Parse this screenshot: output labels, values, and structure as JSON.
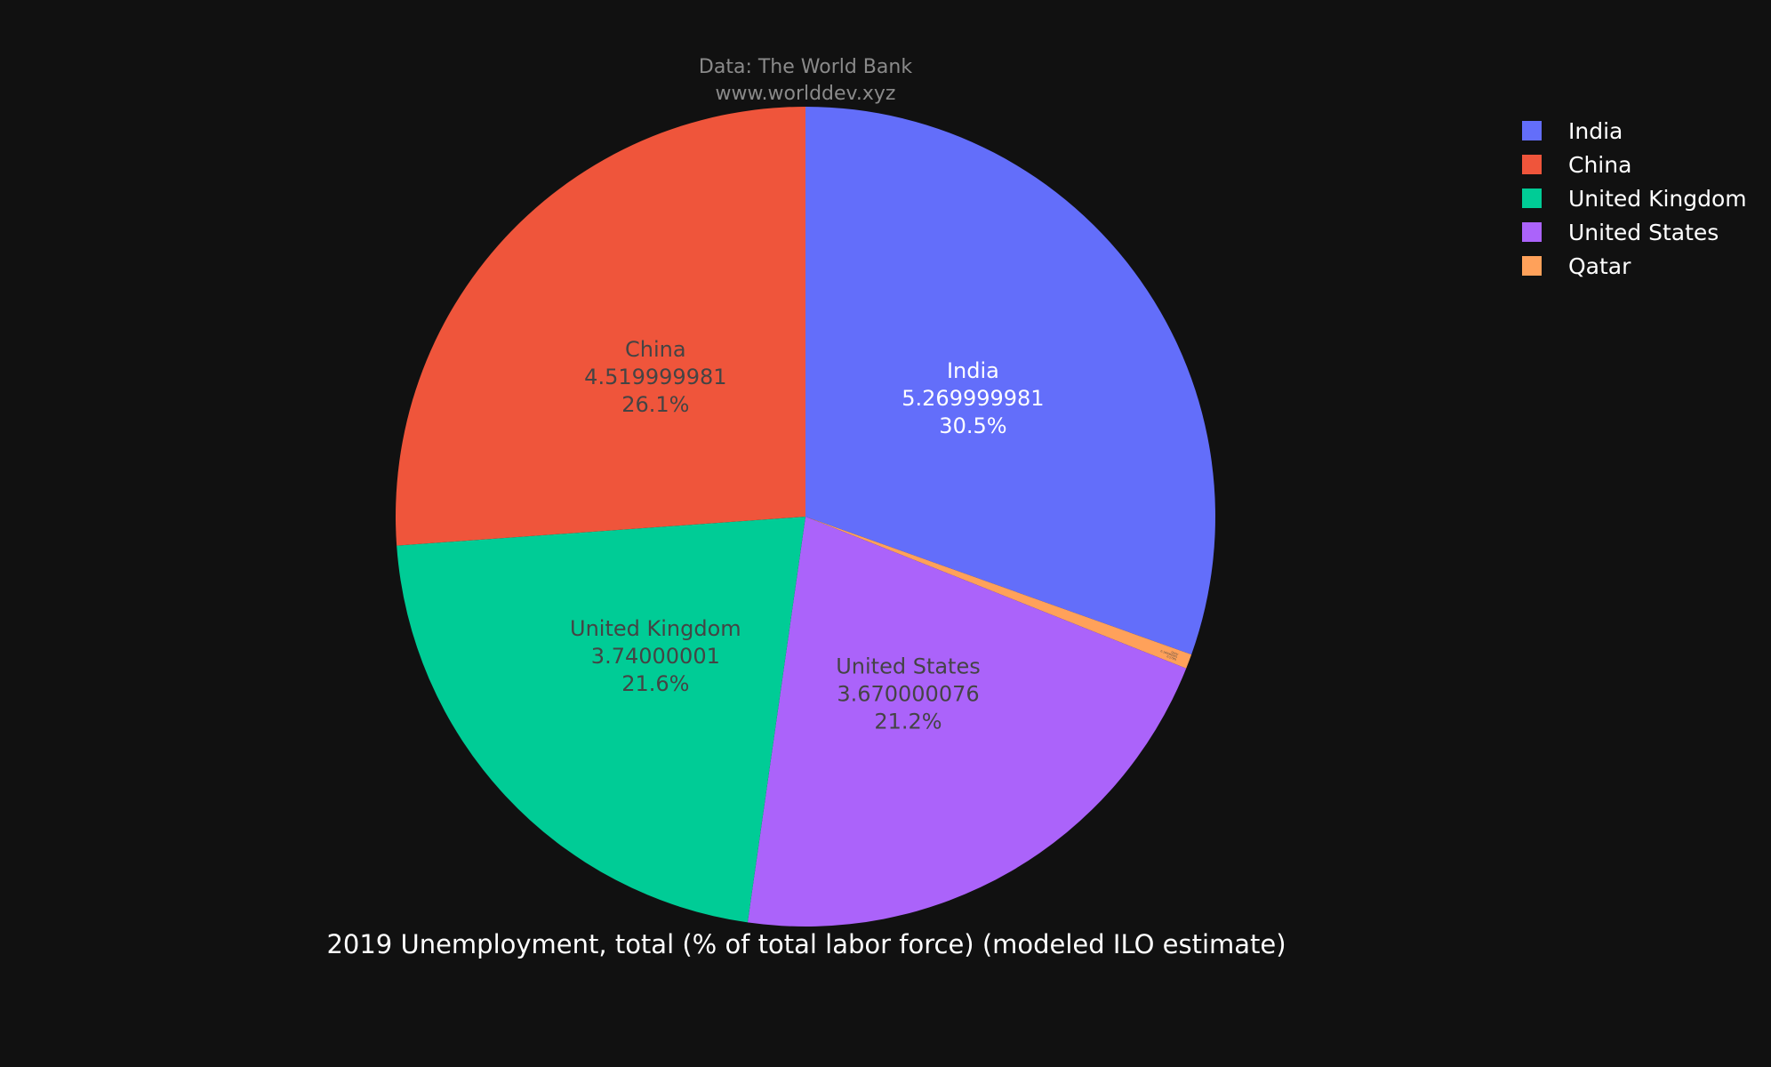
{
  "chart_data": {
    "type": "pie",
    "title": "2019 Unemployment, total (% of total labor force) (modeled ILO estimate)",
    "source_lines": [
      "Data: The World Bank",
      "www.worlddev.xyz"
    ],
    "legend_position": "top-right",
    "slices": [
      {
        "label": "India",
        "value": 5.269999981,
        "value_text": "5.269999981",
        "percent_text": "30.5%",
        "color": "#636efa",
        "text_color": "#ffffff"
      },
      {
        "label": "Qatar",
        "value": 0.100000001,
        "value_text": "0.100000001",
        "percent_text": "0.579%",
        "color": "#ffa15a",
        "text_color": "#444444"
      },
      {
        "label": "United States",
        "value": 3.670000076,
        "value_text": "3.670000076",
        "percent_text": "21.2%",
        "color": "#ab63fa",
        "text_color": "#444444"
      },
      {
        "label": "United Kingdom",
        "value": 3.74000001,
        "value_text": "3.74000001",
        "percent_text": "21.6%",
        "color": "#00cc96",
        "text_color": "#444444"
      },
      {
        "label": "China",
        "value": 4.519999981,
        "value_text": "4.519999981",
        "percent_text": "26.1%",
        "color": "#ef553b",
        "text_color": "#444444"
      }
    ],
    "legend": [
      {
        "label": "India",
        "color": "#636efa"
      },
      {
        "label": "China",
        "color": "#ef553b"
      },
      {
        "label": "United Kingdom",
        "color": "#00cc96"
      },
      {
        "label": "United States",
        "color": "#ab63fa"
      },
      {
        "label": "Qatar",
        "color": "#ffa15a"
      }
    ]
  }
}
